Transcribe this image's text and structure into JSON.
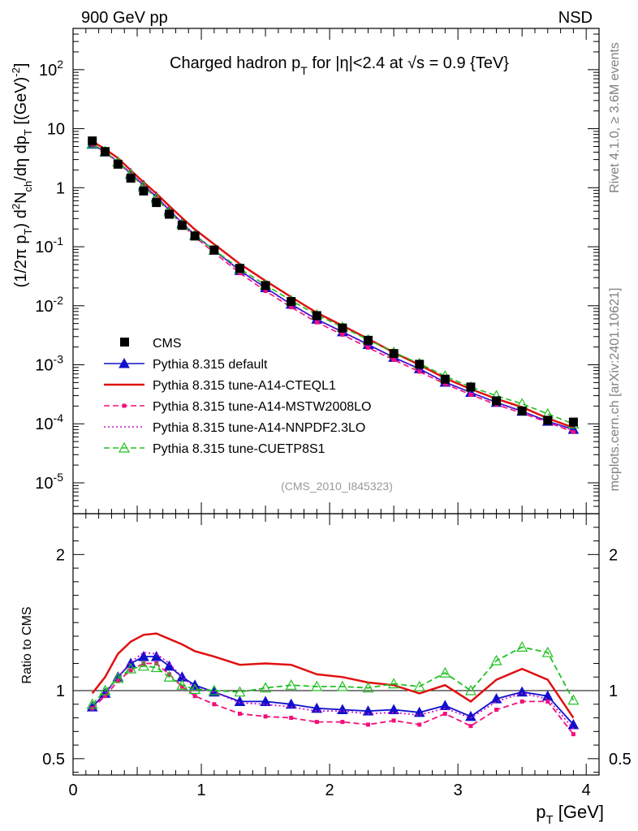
{
  "header": {
    "left": "900 GeV pp",
    "right": "NSD"
  },
  "side_text": {
    "rivet": "Rivet 4.1.0, ≥ 3.6M events",
    "mcplots": "mcplots.cern.ch [arXiv:2401.10621]"
  },
  "chart_data": [
    {
      "type": "line",
      "panel": "main",
      "title_parts": {
        "t1": "Charged hadron p",
        "sub": "T",
        "t2": " for |η|<2.4 at √",
        "t3": "s = 0.9 {TeV}"
      },
      "ylabel_parts": {
        "p1": "(1/2π p",
        "s1": "T",
        "p2": ") d",
        "s2": "2",
        "p3": "N",
        "s3": "ch",
        "p4": "/dη  dp",
        "s4": "T",
        "p5": " [(GeV)",
        "s5": "-2",
        "p6": "]"
      },
      "yscale": "log",
      "xlim": [
        0,
        4.1
      ],
      "ylim": [
        3e-06,
        500
      ],
      "y_ticks": [
        {
          "value": 100,
          "label": "10",
          "exp": "2"
        },
        {
          "value": 10,
          "label": "10",
          "exp": ""
        },
        {
          "value": 1,
          "label": "1",
          "exp": ""
        },
        {
          "value": 0.1,
          "label": "10",
          "exp": "-1"
        },
        {
          "value": 0.01,
          "label": "10",
          "exp": "-2"
        },
        {
          "value": 0.001,
          "label": "10",
          "exp": "-3"
        },
        {
          "value": 0.0001,
          "label": "10",
          "exp": "-4"
        },
        {
          "value": 1e-05,
          "label": "10",
          "exp": "-5"
        }
      ],
      "annotation": "(CMS_2010_I845323)",
      "legend_position": "bottom-left",
      "x": [
        0.15,
        0.25,
        0.35,
        0.45,
        0.55,
        0.65,
        0.75,
        0.85,
        0.95,
        1.1,
        1.3,
        1.5,
        1.7,
        1.9,
        2.1,
        2.3,
        2.5,
        2.7,
        2.9,
        3.1,
        3.3,
        3.5,
        3.7,
        3.9
      ],
      "data": [
        6.2,
        4.1,
        2.5,
        1.45,
        0.88,
        0.56,
        0.355,
        0.23,
        0.152,
        0.088,
        0.043,
        0.022,
        0.0118,
        0.0068,
        0.0042,
        0.0026,
        0.00155,
        0.00102,
        0.00057,
        0.00042,
        0.000245,
        0.000165,
        0.000115,
        0.000107
      ],
      "data_label": "CMS",
      "data_color": "#000000"
    },
    {
      "type": "line",
      "panel": "ratio",
      "ylabel": "Ratio to CMS",
      "xlabel": "p",
      "xlabel_sub": "T",
      "xlabel_unit": " [GeV]",
      "xlim": [
        0,
        4.1
      ],
      "ylim": [
        0.38,
        2.3
      ],
      "x_ticks": [
        0,
        1,
        2,
        3,
        4
      ],
      "y_ticks": [
        0.5,
        1,
        2
      ],
      "x": [
        0.15,
        0.25,
        0.35,
        0.45,
        0.55,
        0.65,
        0.75,
        0.85,
        0.95,
        1.1,
        1.3,
        1.5,
        1.7,
        1.9,
        2.1,
        2.3,
        2.5,
        2.7,
        2.9,
        3.1,
        3.3,
        3.5,
        3.7,
        3.9
      ],
      "series": [
        {
          "name": "Pythia 8.315 default",
          "color": "#1010cc",
          "style": "solid",
          "marker": "triangle-filled",
          "ratio": [
            0.88,
            0.98,
            1.1,
            1.2,
            1.25,
            1.25,
            1.18,
            1.1,
            1.04,
            0.99,
            0.92,
            0.92,
            0.9,
            0.87,
            0.86,
            0.85,
            0.86,
            0.84,
            0.89,
            0.81,
            0.94,
            0.99,
            0.96,
            0.75
          ]
        },
        {
          "name": "Pythia 8.315 tune-A14-CTEQL1",
          "color": "#e01010",
          "style": "solid",
          "marker": "none",
          "ratio": [
            0.98,
            1.1,
            1.27,
            1.36,
            1.41,
            1.42,
            1.38,
            1.34,
            1.29,
            1.25,
            1.19,
            1.2,
            1.19,
            1.12,
            1.1,
            1.06,
            1.04,
            0.98,
            1.04,
            0.92,
            1.08,
            1.16,
            1.08,
            0.8
          ]
        },
        {
          "name": "Pythia 8.315 tune-A14-MSTW2008LO",
          "color": "#f0107a",
          "style": "dashed",
          "marker": "square-small",
          "ratio": [
            0.87,
            0.96,
            1.07,
            1.15,
            1.2,
            1.2,
            1.12,
            1.03,
            0.96,
            0.9,
            0.83,
            0.81,
            0.8,
            0.77,
            0.77,
            0.75,
            0.78,
            0.75,
            0.83,
            0.74,
            0.86,
            0.92,
            0.92,
            0.68
          ]
        },
        {
          "name": "Pythia 8.315 tune-A14-NNPDF2.3LO",
          "color": "#cc10cc",
          "style": "dotted",
          "marker": "none",
          "ratio": [
            0.87,
            0.98,
            1.1,
            1.21,
            1.28,
            1.27,
            1.2,
            1.1,
            1.02,
            0.99,
            0.91,
            0.9,
            0.88,
            0.85,
            0.85,
            0.83,
            0.84,
            0.82,
            0.87,
            0.8,
            0.92,
            0.98,
            0.94,
            0.72
          ]
        },
        {
          "name": "Pythia 8.315 tune-CUETP8S1",
          "color": "#20c020",
          "style": "dashed",
          "marker": "triangle-open",
          "ratio": [
            0.9,
            1.0,
            1.09,
            1.16,
            1.18,
            1.17,
            1.1,
            1.04,
            1.01,
            1.0,
            0.99,
            1.02,
            1.04,
            1.03,
            1.03,
            1.02,
            1.05,
            1.03,
            1.13,
            1.0,
            1.22,
            1.32,
            1.28,
            0.93
          ]
        }
      ]
    }
  ]
}
